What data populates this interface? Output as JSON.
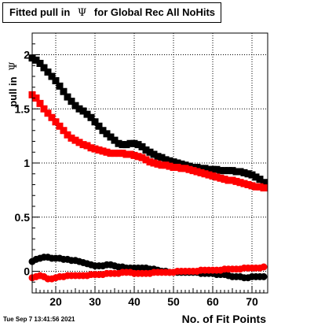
{
  "title": {
    "prefix": "Fitted pull in",
    "symbol": "Ψ",
    "suffix": "for Global Rec All NoHits"
  },
  "timestamp": "Tue Sep  7 13:41:56 2021",
  "colors": {
    "series_black": "#000000",
    "series_red": "#ff0000",
    "grid": "#000000"
  },
  "chart_data": {
    "type": "scatter",
    "xlabel": "No. of Fit Points",
    "ylabel_prefix": "pull in",
    "ylabel_symbol": "Ψ",
    "xlim": [
      14,
      74
    ],
    "ylim": [
      -0.2,
      2.2
    ],
    "xticks": [
      20,
      30,
      40,
      50,
      60,
      70
    ],
    "yticks": [
      0,
      0.5,
      1,
      1.5,
      2
    ],
    "ytick_labels": [
      "0",
      "0.5",
      "1",
      "1.5",
      "2"
    ],
    "grid": true,
    "x": [
      14,
      15,
      16,
      17,
      18,
      19,
      20,
      21,
      22,
      23,
      24,
      25,
      26,
      27,
      28,
      29,
      30,
      31,
      32,
      33,
      34,
      35,
      36,
      37,
      38,
      39,
      40,
      41,
      42,
      43,
      44,
      45,
      46,
      47,
      48,
      49,
      50,
      51,
      52,
      53,
      54,
      55,
      56,
      57,
      58,
      59,
      60,
      61,
      62,
      63,
      64,
      65,
      66,
      67,
      68,
      69,
      70,
      71,
      72,
      73
    ],
    "series": [
      {
        "color": "#000000",
        "marker": "square",
        "values": [
          1.97,
          1.95,
          1.92,
          1.88,
          1.84,
          1.8,
          1.76,
          1.71,
          1.66,
          1.61,
          1.57,
          1.53,
          1.5,
          1.48,
          1.45,
          1.42,
          1.38,
          1.34,
          1.3,
          1.27,
          1.24,
          1.21,
          1.18,
          1.17,
          1.17,
          1.18,
          1.18,
          1.17,
          1.15,
          1.12,
          1.1,
          1.08,
          1.06,
          1.05,
          1.03,
          1.02,
          1.01,
          1.0,
          0.99,
          0.98,
          0.97,
          0.96,
          0.96,
          0.95,
          0.95,
          0.94,
          0.94,
          0.94,
          0.93,
          0.93,
          0.93,
          0.93,
          0.92,
          0.92,
          0.91,
          0.9,
          0.89,
          0.87,
          0.85,
          0.82
        ]
      },
      {
        "color": "#ff0000",
        "marker": "square",
        "values": [
          1.63,
          1.6,
          1.55,
          1.5,
          1.46,
          1.42,
          1.38,
          1.34,
          1.3,
          1.26,
          1.23,
          1.21,
          1.19,
          1.17,
          1.16,
          1.14,
          1.13,
          1.12,
          1.11,
          1.1,
          1.09,
          1.09,
          1.09,
          1.09,
          1.08,
          1.08,
          1.07,
          1.06,
          1.05,
          1.03,
          1.01,
          1.0,
          0.99,
          0.98,
          0.98,
          0.97,
          0.96,
          0.96,
          0.95,
          0.95,
          0.94,
          0.93,
          0.92,
          0.91,
          0.9,
          0.89,
          0.88,
          0.87,
          0.86,
          0.85,
          0.84,
          0.84,
          0.83,
          0.82,
          0.81,
          0.8,
          0.79,
          0.78,
          0.78,
          0.77
        ]
      },
      {
        "color": "#000000",
        "marker": "circle",
        "values": [
          0.09,
          0.11,
          0.12,
          0.13,
          0.13,
          0.12,
          0.12,
          0.12,
          0.11,
          0.11,
          0.1,
          0.1,
          0.09,
          0.08,
          0.07,
          0.06,
          0.05,
          0.05,
          0.05,
          0.06,
          0.06,
          0.05,
          0.04,
          0.04,
          0.03,
          0.03,
          0.03,
          0.03,
          0.03,
          0.03,
          0.02,
          0.02,
          0.01,
          0.0,
          0.0,
          -0.01,
          -0.01,
          -0.01,
          -0.01,
          -0.01,
          -0.01,
          -0.01,
          -0.01,
          -0.02,
          -0.02,
          -0.02,
          -0.02,
          -0.03,
          -0.03,
          -0.03,
          -0.04,
          -0.05,
          -0.05,
          -0.05,
          -0.06,
          -0.06,
          -0.05,
          -0.05,
          -0.05,
          -0.05
        ]
      },
      {
        "color": "#ff0000",
        "marker": "circle",
        "values": [
          -0.06,
          -0.05,
          -0.04,
          -0.05,
          -0.07,
          -0.07,
          -0.06,
          -0.05,
          -0.05,
          -0.04,
          -0.04,
          -0.04,
          -0.04,
          -0.04,
          -0.04,
          -0.03,
          -0.03,
          -0.03,
          -0.03,
          -0.02,
          -0.02,
          -0.02,
          -0.02,
          -0.01,
          -0.01,
          -0.01,
          -0.02,
          -0.02,
          -0.02,
          -0.02,
          -0.02,
          -0.01,
          -0.01,
          -0.01,
          -0.01,
          -0.01,
          -0.01,
          0.0,
          0.0,
          0.0,
          0.0,
          0.0,
          0.0,
          0.01,
          0.01,
          0.01,
          0.01,
          0.01,
          0.01,
          0.02,
          0.02,
          0.02,
          0.02,
          0.02,
          0.03,
          0.03,
          0.03,
          0.03,
          0.03,
          0.04
        ]
      }
    ]
  }
}
